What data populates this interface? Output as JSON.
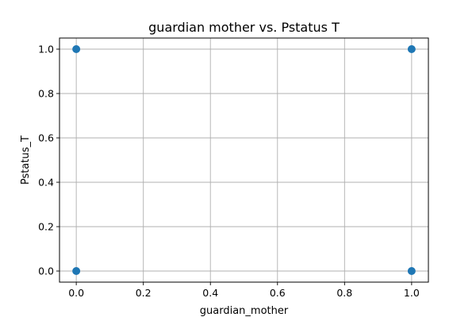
{
  "chart_data": {
    "type": "scatter",
    "title": "guardian mother vs. Pstatus T",
    "xlabel": "guardian_mother",
    "ylabel": "Pstatus_T",
    "xlim": [
      -0.05,
      1.05
    ],
    "ylim": [
      -0.05,
      1.05
    ],
    "xticks": [
      0.0,
      0.2,
      0.4,
      0.6,
      0.8,
      1.0
    ],
    "yticks": [
      0.0,
      0.2,
      0.4,
      0.6,
      0.8,
      1.0
    ],
    "xtick_labels": [
      "0.0",
      "0.2",
      "0.4",
      "0.6",
      "0.8",
      "1.0"
    ],
    "ytick_labels": [
      "0.0",
      "0.2",
      "0.4",
      "0.6",
      "0.8",
      "1.0"
    ],
    "grid": true,
    "marker_color": "#1f77b4",
    "points": [
      {
        "x": 0,
        "y": 0
      },
      {
        "x": 0,
        "y": 1
      },
      {
        "x": 1,
        "y": 0
      },
      {
        "x": 1,
        "y": 1
      }
    ]
  }
}
